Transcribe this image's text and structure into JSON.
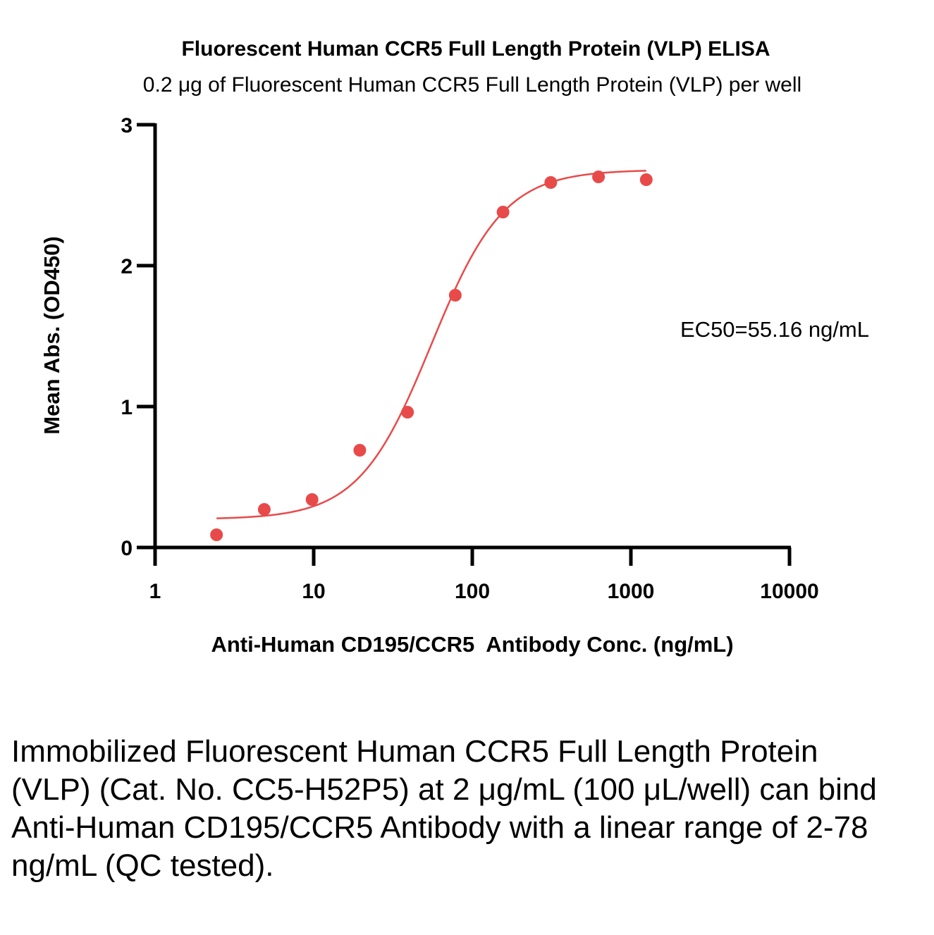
{
  "chart_data": {
    "type": "scatter",
    "title": "Fluorescent Human CCR5 Full Length Protein (VLP) ELISA",
    "subtitle": "0.2 μg of Fluorescent Human CCR5 Full Length Protein (VLP) per well",
    "xlabel": "Anti-Human CD195/CCR5  Antibody Conc. (ng/mL)",
    "ylabel": "Mean Abs. (OD450)",
    "xscale": "log",
    "xlim": [
      1,
      10000
    ],
    "ylim": [
      0,
      3
    ],
    "xticks": [
      "1",
      "10",
      "100",
      "1000",
      "10000"
    ],
    "yticks": [
      "0",
      "1",
      "2",
      "3"
    ],
    "grid": false,
    "color": "#e84a4a",
    "annotation": "EC50=55.16 ng/mL",
    "series": [
      {
        "x": [
          2.44,
          4.88,
          9.77,
          19.53,
          39.06,
          78.13,
          156.25,
          312.5,
          625,
          1250
        ],
        "y": [
          0.09,
          0.27,
          0.34,
          0.69,
          0.96,
          1.79,
          2.38,
          2.59,
          2.63,
          2.61
        ]
      }
    ],
    "fit": {
      "model": "4PL",
      "bottom": 0.2,
      "top": 2.68,
      "ec50": 55.16,
      "hill": 1.9,
      "x_range": [
        2.44,
        1250
      ]
    }
  },
  "caption": "Immobilized Fluorescent Human CCR5 Full Length Protein (VLP) (Cat. No. CC5-H52P5) at 2 μg/mL (100 μL/well) can bind Anti-Human CD195/CCR5 Antibody with a linear range of 2-78 ng/mL (QC tested)."
}
